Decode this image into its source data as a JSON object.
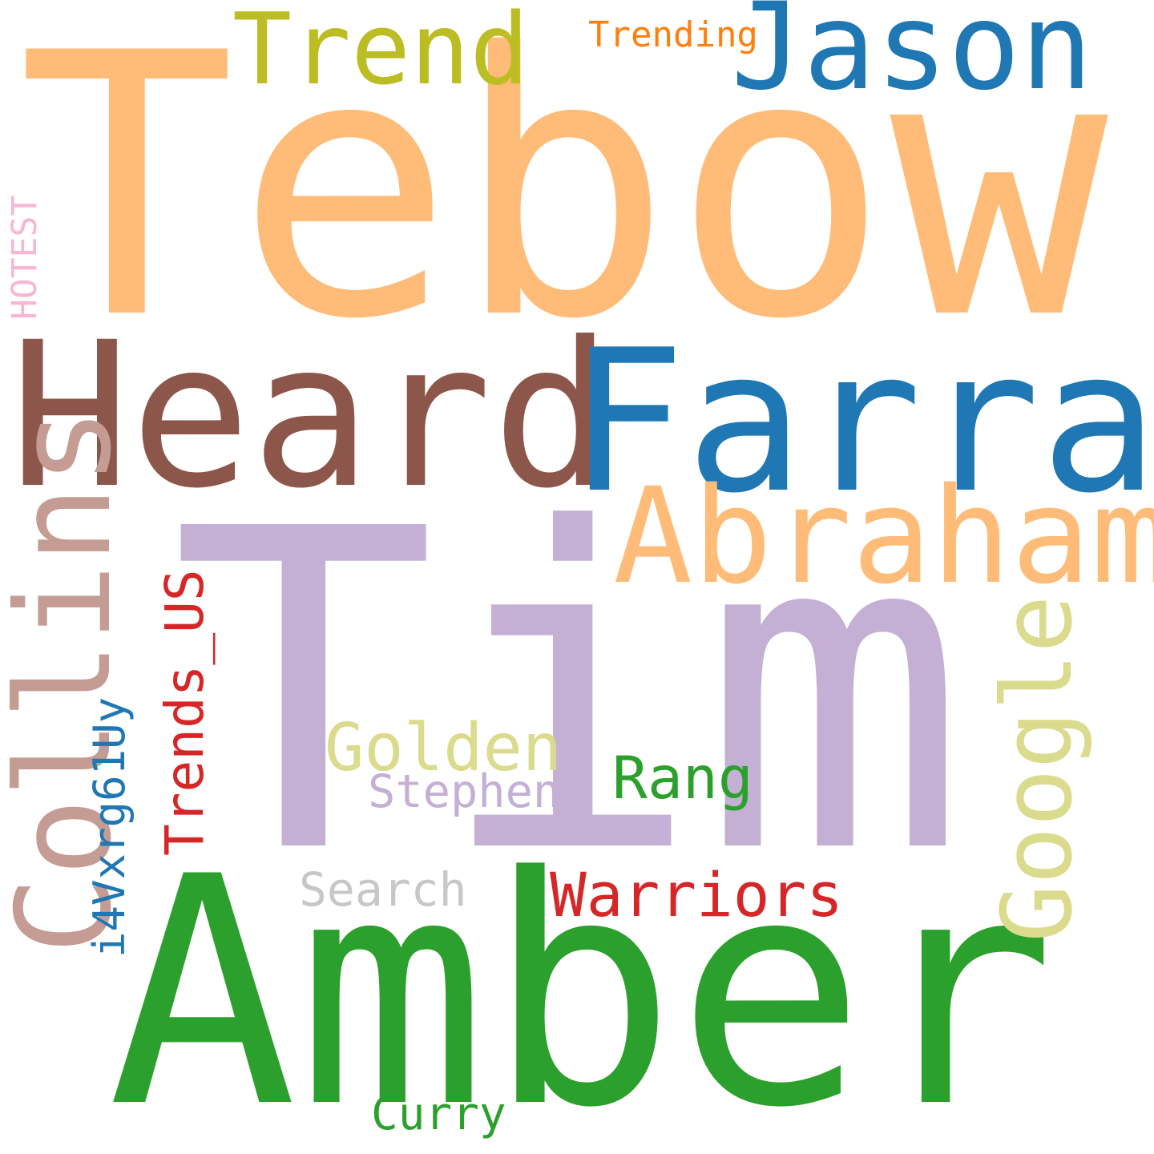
{
  "words": {
    "tebow": {
      "text": "Tebow",
      "color": "#ffbb78"
    },
    "tim": {
      "text": "Tim",
      "color": "#c5b0d5"
    },
    "amber": {
      "text": "Amber",
      "color": "#2ca02c"
    },
    "heard": {
      "text": "Heard",
      "color": "#8c564b"
    },
    "farrah": {
      "text": "Farrah",
      "color": "#1f77b4"
    },
    "jason": {
      "text": "Jason",
      "color": "#1f77b4"
    },
    "trend": {
      "text": "Trend",
      "color": "#bcbd22"
    },
    "trending": {
      "text": "Trending",
      "color": "#ff7f0e"
    },
    "abraham": {
      "text": "Abraham",
      "color": "#ffbb78"
    },
    "collins": {
      "text": "Collins",
      "color": "#c49c94"
    },
    "google": {
      "text": "Google",
      "color": "#dbdb8d"
    },
    "trendsus": {
      "text": "Trends_US",
      "color": "#d62728"
    },
    "i4v": {
      "text": "i4Vxrg61Uy",
      "color": "#1f77b4"
    },
    "hotest": {
      "text": "HOTEST",
      "color": "#f7b6d2"
    },
    "golden": {
      "text": "Golden",
      "color": "#dbdb8d"
    },
    "stephen": {
      "text": "Stephen",
      "color": "#c5b0d5"
    },
    "rang": {
      "text": "Rang",
      "color": "#2ca02c"
    },
    "search": {
      "text": "Search",
      "color": "#c7c7c7"
    },
    "warriors": {
      "text": "Warriors",
      "color": "#d62728"
    },
    "curry": {
      "text": "Curry",
      "color": "#2ca02c"
    }
  }
}
